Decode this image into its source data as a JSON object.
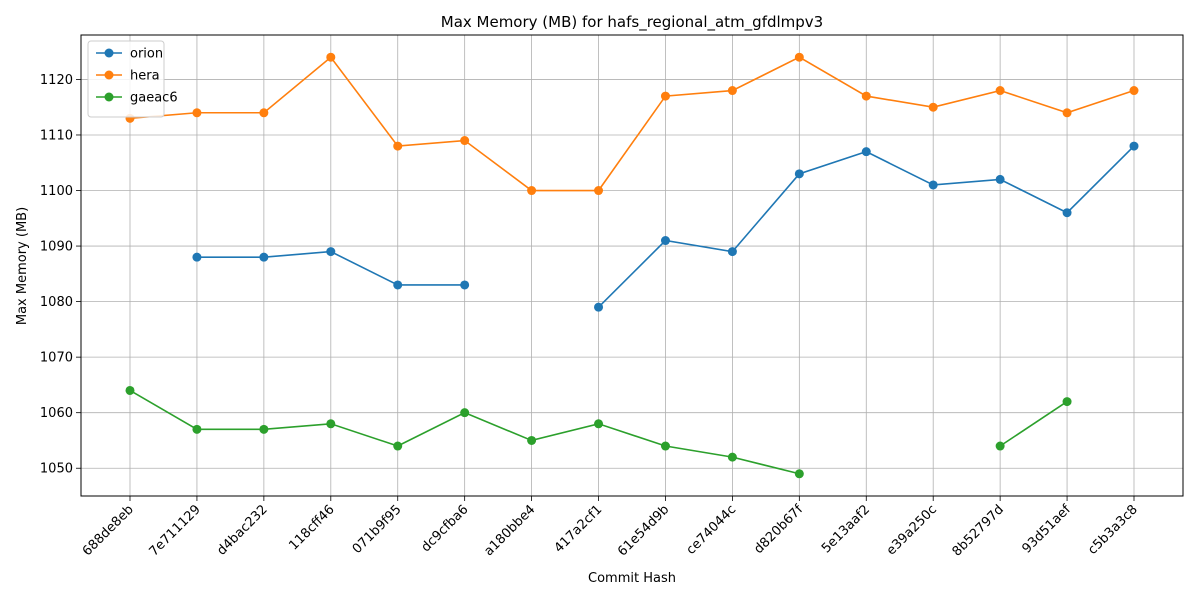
{
  "chart_data": {
    "type": "line",
    "title": "Max Memory (MB) for hafs_regional_atm_gfdlmpv3",
    "xlabel": "Commit Hash",
    "ylabel": "Max Memory (MB)",
    "categories": [
      "688de8eb",
      "7e711129",
      "d4bac232",
      "118cff46",
      "071b9f95",
      "dc9cfba6",
      "a180bbe4",
      "417a2cf1",
      "61e54d9b",
      "ce74044c",
      "d820b67f",
      "5e13aaf2",
      "e39a250c",
      "8b52797d",
      "93d51aef",
      "c5b3a3c8"
    ],
    "ylim": [
      1045,
      1128
    ],
    "yticks": [
      1050,
      1060,
      1070,
      1080,
      1090,
      1100,
      1110,
      1120
    ],
    "grid": true,
    "legend_position": "top-left",
    "series": [
      {
        "name": "orion",
        "color": "#1f77b4",
        "values": [
          null,
          1088,
          1088,
          1089,
          1083,
          1083,
          null,
          1079,
          1091,
          1089,
          1103,
          1107,
          1101,
          1102,
          1096,
          1108
        ]
      },
      {
        "name": "hera",
        "color": "#ff7f0e",
        "values": [
          1113,
          1114,
          1114,
          1124,
          1108,
          1109,
          1100,
          1100,
          1117,
          1118,
          1124,
          1117,
          1115,
          1118,
          1114,
          1118
        ]
      },
      {
        "name": "gaeac6",
        "color": "#2ca02c",
        "values": [
          1064,
          1057,
          1057,
          1058,
          1054,
          1060,
          1055,
          1058,
          1054,
          1052,
          1049,
          null,
          null,
          1054,
          1062,
          null
        ]
      }
    ]
  }
}
